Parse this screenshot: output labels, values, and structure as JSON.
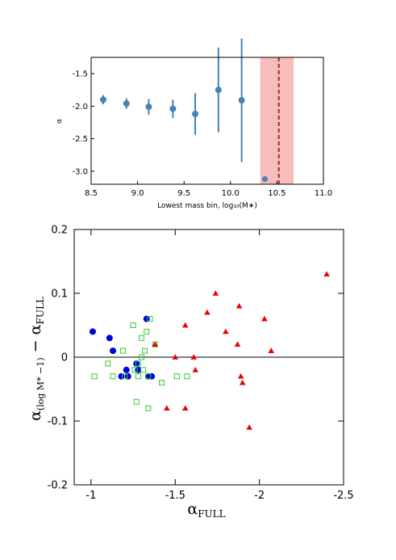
{
  "chart_data": [
    {
      "type": "scatter",
      "title": "",
      "xlabel": "Lowest mass bin, log₁₀(M∗)",
      "ylabel": "α",
      "xlim": [
        8.5,
        11.0
      ],
      "ylim": [
        -3.2,
        -1.25
      ],
      "xticks": [
        "8.5",
        "9.0",
        "9.5",
        "10.0",
        "10.5",
        "11.0"
      ],
      "yticks": [
        "-1.5",
        "-2.0",
        "-2.5",
        "-3.0"
      ],
      "grid": false,
      "marker_color": "#4682b4",
      "band_color": "#f4a6a6",
      "line_color": "#b22222",
      "series": [
        {
          "x": [
            8.63,
            8.88,
            9.12,
            9.38,
            9.62,
            9.87,
            10.12
          ],
          "y": [
            -1.9,
            -1.96,
            -2.01,
            -2.04,
            -2.12,
            -1.75,
            -1.91
          ],
          "yerr": [
            0.07,
            0.08,
            0.12,
            0.14,
            0.32,
            0.65,
            0.95
          ]
        }
      ],
      "outlier": {
        "x": 10.37,
        "y": -3.12
      },
      "band": [
        10.32,
        10.68
      ],
      "vline": 10.52
    },
    {
      "type": "scatter",
      "title": "",
      "xlabel": "α",
      "xlabel_sub": "FULL",
      "ylabel": "α",
      "ylabel_sub": "(log M* −1)",
      "ylabel_suffix": "− α",
      "ylabel_suffix_sub": "FULL",
      "xlim": [
        -0.9,
        -2.5
      ],
      "ylim": [
        -0.2,
        0.2
      ],
      "xticks": [
        "-1",
        "-1.5",
        "-2",
        "-2.5"
      ],
      "yticks": [
        "0.2",
        "0.1",
        "0",
        "-0.1",
        "-0.2"
      ],
      "grid": false,
      "hline": 0,
      "series": [
        {
          "marker": "circle",
          "color": "#0000dd",
          "x": [
            -1.01,
            -1.11,
            -1.13,
            -1.18,
            -1.21,
            -1.22,
            -1.27,
            -1.28,
            -1.33,
            -1.34,
            -1.36
          ],
          "y": [
            0.04,
            0.03,
            0.01,
            -0.03,
            -0.02,
            -0.03,
            -0.01,
            -0.02,
            0.06,
            -0.03,
            -0.03
          ]
        },
        {
          "marker": "square",
          "color": "#33cc33",
          "x": [
            -1.02,
            -1.1,
            -1.13,
            -1.19,
            -1.2,
            -1.25,
            -1.26,
            -1.27,
            -1.28,
            -1.28,
            -1.3,
            -1.3,
            -1.31,
            -1.32,
            -1.33,
            -1.34,
            -1.34,
            -1.38,
            -1.42,
            -1.51,
            -1.57,
            -1.35
          ],
          "y": [
            -0.03,
            -0.01,
            -0.03,
            0.01,
            -0.03,
            0.05,
            -0.02,
            -0.07,
            -0.01,
            -0.03,
            0.0,
            0.03,
            -0.02,
            0.01,
            0.04,
            -0.03,
            -0.08,
            0.02,
            -0.04,
            -0.03,
            -0.03,
            0.06
          ]
        },
        {
          "marker": "triangle",
          "color": "#ee0000",
          "x": [
            -1.38,
            -1.45,
            -1.5,
            -1.56,
            -1.56,
            -1.61,
            -1.62,
            -1.69,
            -1.74,
            -1.8,
            -1.87,
            -1.88,
            -1.89,
            -1.9,
            -1.94,
            -2.03,
            -2.07,
            -2.4
          ],
          "y": [
            0.02,
            -0.08,
            0.0,
            0.05,
            -0.08,
            0.0,
            -0.02,
            0.07,
            0.1,
            0.04,
            0.02,
            0.08,
            -0.03,
            -0.04,
            -0.11,
            0.06,
            0.01,
            0.13
          ]
        }
      ]
    }
  ]
}
